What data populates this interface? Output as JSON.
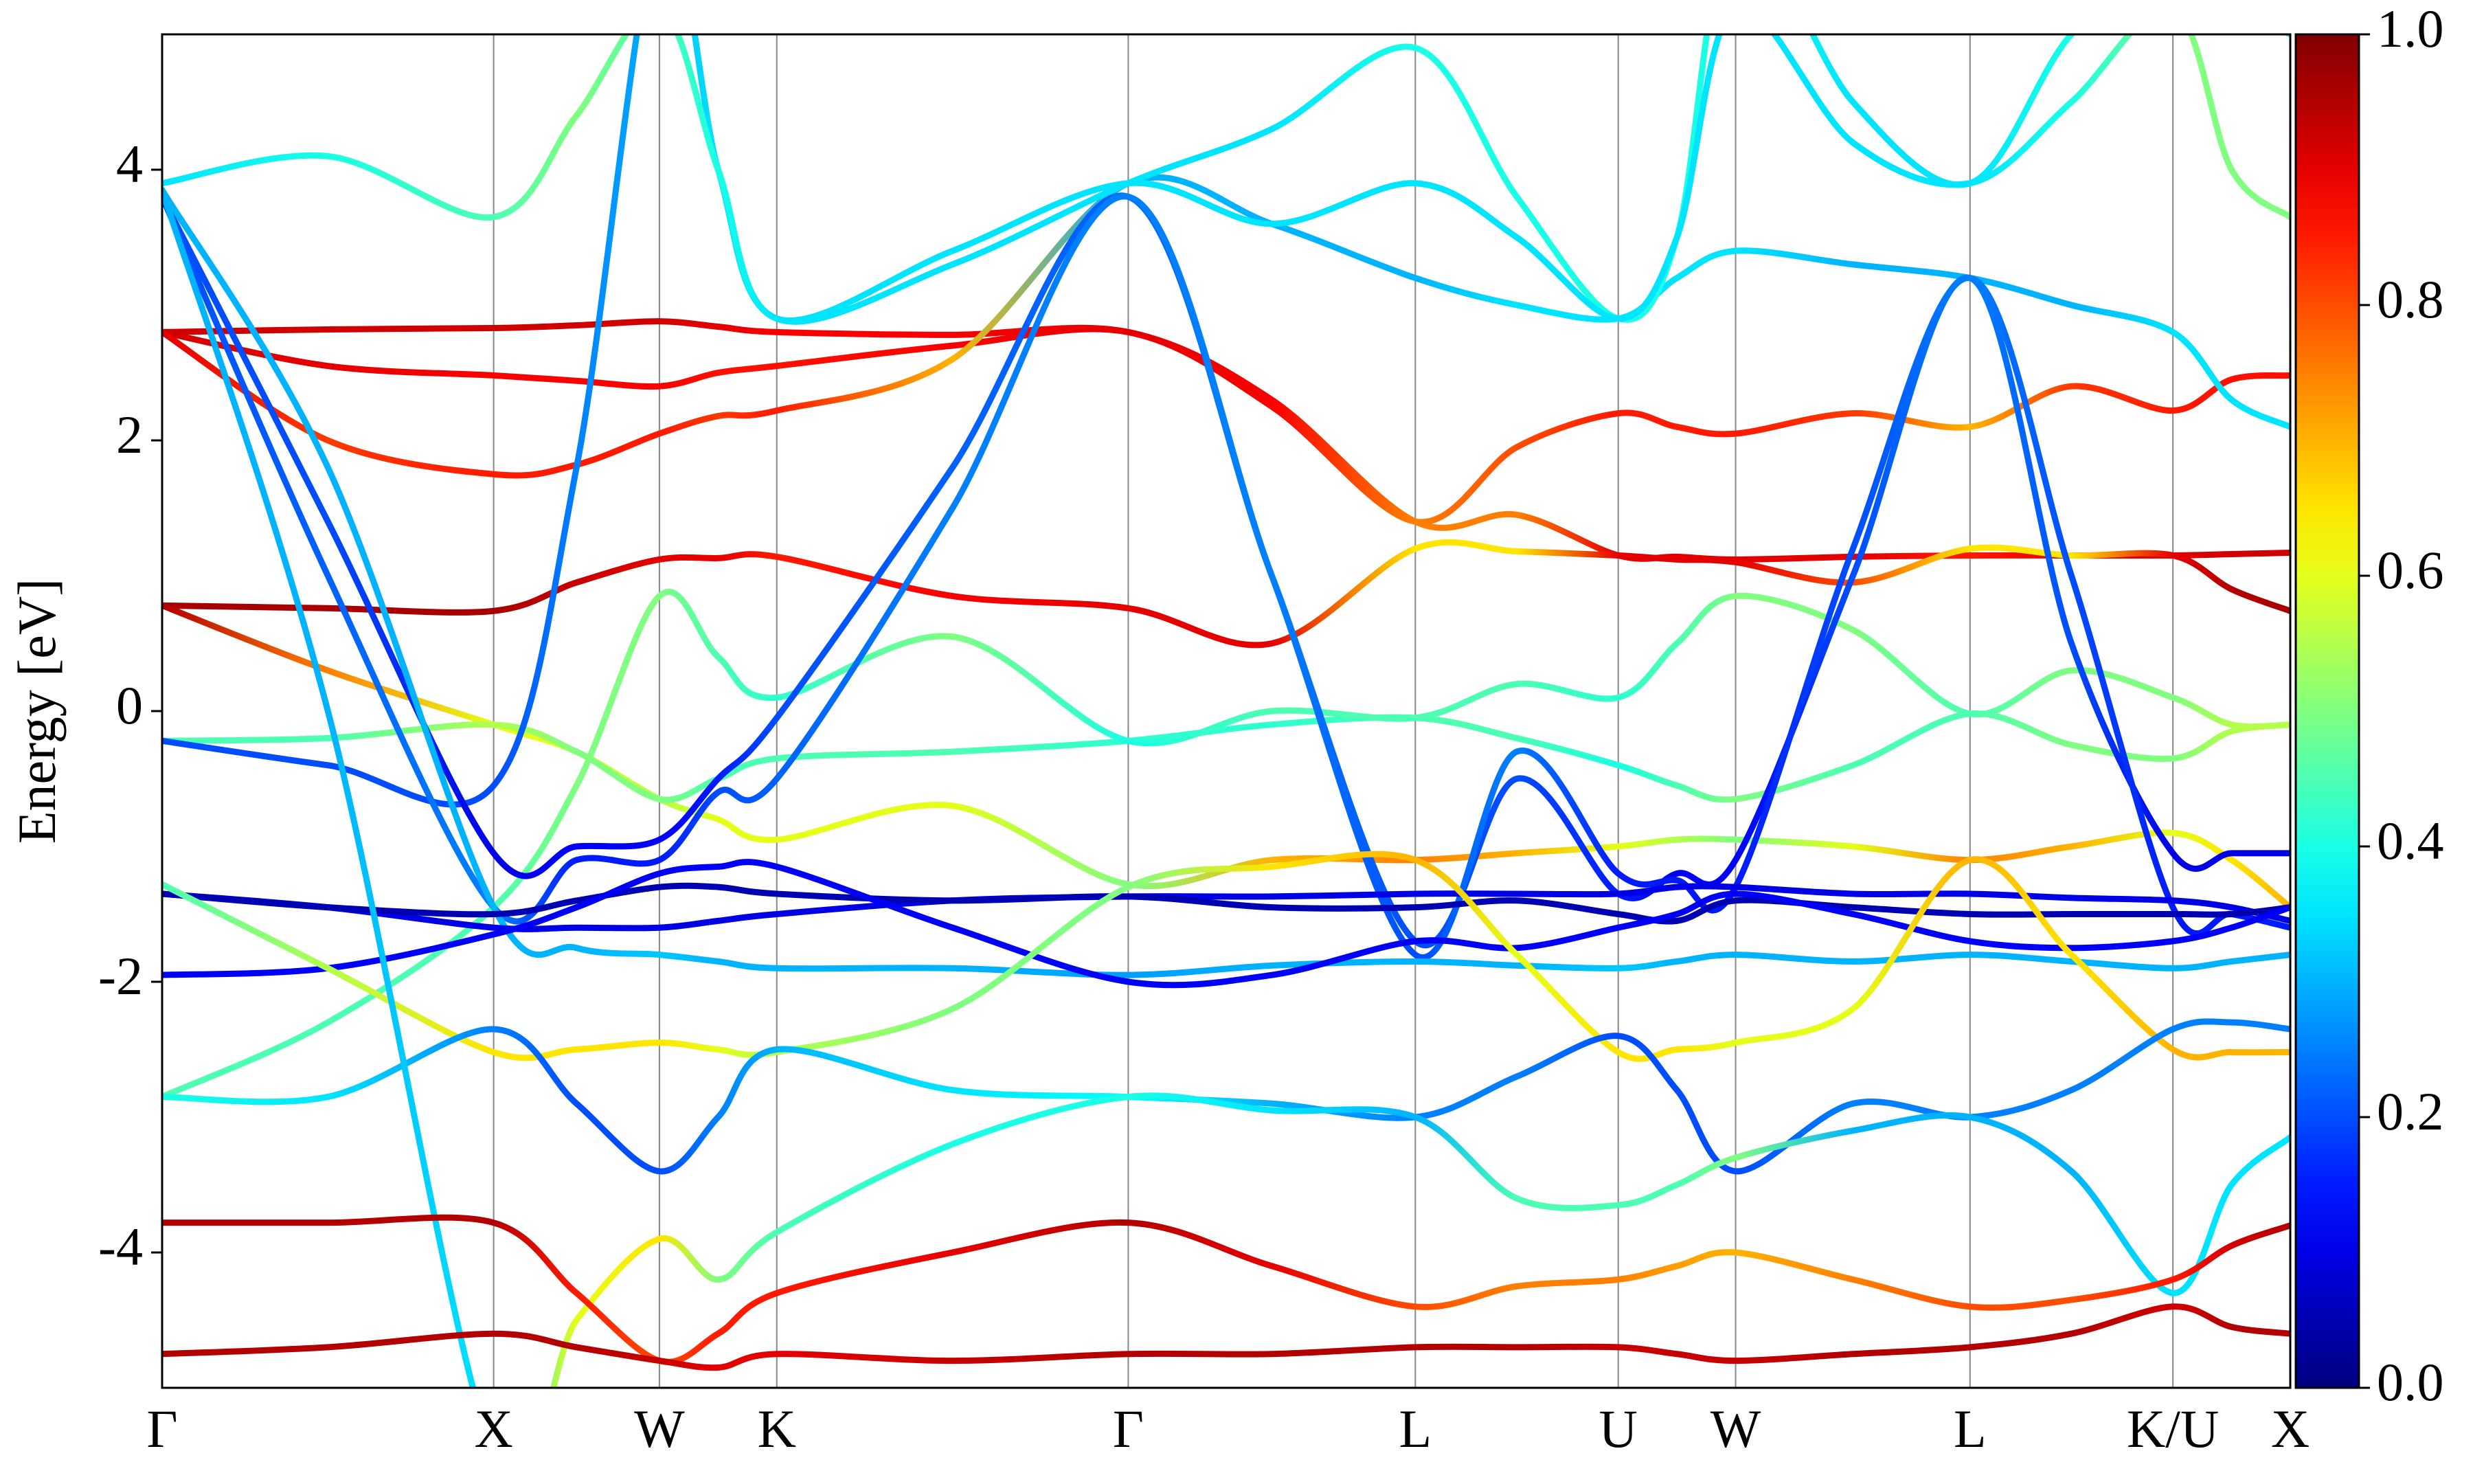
{
  "chart_data": {
    "type": "band-structure",
    "ylabel": "Energy [eV]",
    "colormap": "jet",
    "x": [
      0,
      0.5,
      1,
      1.25,
      1.5,
      1.677,
      1.854,
      2.384,
      2.914,
      3.347,
      3.78,
      4.086,
      4.392,
      4.569,
      4.746,
      5.1,
      5.453,
      5.759,
      6.065,
      6.242,
      6.419
    ],
    "xlim": [
      0,
      6.419
    ],
    "xticks": [
      {
        "value": 0,
        "label": "Γ"
      },
      {
        "value": 1,
        "label": "X"
      },
      {
        "value": 1.5,
        "label": "W"
      },
      {
        "value": 1.854,
        "label": "K"
      },
      {
        "value": 2.914,
        "label": "Γ"
      },
      {
        "value": 3.78,
        "label": "L"
      },
      {
        "value": 4.392,
        "label": "U"
      },
      {
        "value": 4.746,
        "label": "W"
      },
      {
        "value": 5.453,
        "label": "L"
      },
      {
        "value": 6.065,
        "label": "K/U"
      },
      {
        "value": 6.419,
        "label": "X"
      }
    ],
    "ylim": [
      -5,
      5
    ],
    "yticks": [
      -4,
      -2,
      0,
      2,
      4
    ],
    "colorbar_lim": [
      0,
      1
    ],
    "colorbar_ticks": [
      {
        "value": 0,
        "label": "0.0"
      },
      0.2,
      0.4,
      0.6,
      0.8,
      {
        "value": 1,
        "label": "1.0"
      }
    ],
    "series": [
      {
        "values": [
          2.8,
          2.82,
          2.83,
          2.85,
          2.88,
          2.84,
          2.8,
          2.78,
          2.8,
          2.3,
          1.4,
          1.45,
          1.15,
          1.14,
          1.12,
          1.14,
          1.15,
          1.15,
          1.15,
          1.16,
          1.17
        ],
        "weights": [
          0.92,
          0.92,
          0.92,
          0.92,
          0.92,
          0.9,
          0.88,
          0.88,
          0.9,
          0.88,
          0.75,
          0.75,
          0.9,
          0.9,
          0.9,
          0.9,
          0.85,
          0.9,
          0.9,
          0.92,
          0.92
        ]
      },
      {
        "values": [
          2.8,
          2.55,
          2.48,
          2.44,
          2.4,
          2.5,
          2.55,
          2.7,
          2.8,
          2.25,
          1.4,
          1.95,
          2.2,
          2.1,
          2.05,
          2.2,
          2.1,
          2.4,
          2.22,
          2.45,
          2.48
        ],
        "weights": [
          0.92,
          0.9,
          0.88,
          0.88,
          0.88,
          0.86,
          0.86,
          0.88,
          0.9,
          0.88,
          0.75,
          0.8,
          0.85,
          0.85,
          0.85,
          0.82,
          0.7,
          0.82,
          0.85,
          0.86,
          0.86
        ]
      },
      {
        "values": [
          2.8,
          2.0,
          1.75,
          1.82,
          2.05,
          2.18,
          2.22,
          2.6,
          3.9,
          3.6,
          3.2,
          3.0,
          2.9,
          3.2,
          3.4,
          3.3,
          3.2,
          3.0,
          2.8,
          2.3,
          2.1
        ],
        "weights": [
          0.9,
          0.82,
          0.85,
          0.85,
          0.85,
          0.82,
          0.85,
          0.7,
          0.3,
          0.3,
          0.3,
          0.35,
          0.35,
          0.35,
          0.35,
          0.3,
          0.3,
          0.3,
          0.35,
          0.35,
          0.35
        ]
      },
      {
        "values": [
          0.78,
          0.76,
          0.74,
          0.95,
          1.12,
          1.13,
          1.14,
          0.85,
          0.76,
          0.5,
          1.2,
          1.18,
          1.15,
          1.12,
          1.1,
          0.95,
          1.2,
          1.15,
          1.15,
          0.9,
          0.74
        ],
        "weights": [
          0.96,
          0.96,
          0.96,
          0.93,
          0.9,
          0.9,
          0.85,
          0.88,
          0.9,
          0.9,
          0.65,
          0.65,
          0.9,
          0.9,
          0.9,
          0.8,
          0.65,
          0.65,
          0.9,
          0.95,
          0.96
        ]
      },
      {
        "values": [
          0.78,
          0.3,
          -0.1,
          -0.3,
          -0.65,
          -0.8,
          -0.95,
          -0.7,
          -1.28,
          -1.1,
          -1.1,
          -1.05,
          -1.0,
          -0.95,
          -0.95,
          -1.0,
          -1.1,
          -1.0,
          -0.9,
          -1.1,
          -1.45
        ],
        "weights": [
          0.95,
          0.75,
          0.6,
          0.6,
          0.55,
          0.6,
          0.6,
          0.6,
          0.5,
          0.7,
          0.75,
          0.7,
          0.6,
          0.55,
          0.5,
          0.6,
          0.75,
          0.7,
          0.6,
          0.65,
          0.7
        ]
      },
      {
        "values": [
          -0.22,
          -0.2,
          -0.1,
          -0.3,
          -0.65,
          -0.5,
          -0.35,
          -0.3,
          -0.22,
          -0.1,
          -0.05,
          -0.2,
          -0.4,
          -0.55,
          -0.65,
          -0.4,
          -0.02,
          -0.25,
          -0.35,
          -0.15,
          -0.1
        ],
        "weights": [
          0.45,
          0.45,
          0.55,
          0.5,
          0.5,
          0.45,
          0.45,
          0.45,
          0.42,
          0.42,
          0.45,
          0.45,
          0.4,
          0.45,
          0.5,
          0.45,
          0.45,
          0.5,
          0.5,
          0.55,
          0.55
        ]
      },
      {
        "values": [
          -0.22,
          -0.4,
          -0.55,
          1.8,
          5.8,
          4.0,
          2.9,
          3.3,
          3.9,
          4.3,
          4.9,
          3.8,
          2.9,
          3.5,
          5.8,
          4.5,
          3.9,
          5.0,
          5.5,
          5.2,
          5.0
        ],
        "weights": [
          0.2,
          0.2,
          0.2,
          0.25,
          0.3,
          0.35,
          0.35,
          0.35,
          0.35,
          0.35,
          0.4,
          0.4,
          0.4,
          0.4,
          0.4,
          0.35,
          0.35,
          0.4,
          0.4,
          0.4,
          0.4
        ]
      },
      {
        "values": [
          -2.85,
          -2.3,
          -1.45,
          -0.55,
          0.85,
          0.4,
          0.1,
          0.55,
          -0.22,
          0.0,
          -0.05,
          0.2,
          0.1,
          0.5,
          0.85,
          0.6,
          -0.02,
          0.3,
          0.1,
          -0.1,
          -0.1
        ],
        "weights": [
          0.45,
          0.45,
          0.45,
          0.5,
          0.5,
          0.45,
          0.42,
          0.5,
          0.4,
          0.45,
          0.45,
          0.45,
          0.42,
          0.45,
          0.5,
          0.5,
          0.45,
          0.5,
          0.5,
          0.55,
          0.55
        ]
      },
      {
        "values": [
          3.8,
          1.4,
          -1.05,
          -1.0,
          -0.95,
          -0.5,
          -0.05,
          1.8,
          3.8,
          1.0,
          -1.7,
          -0.5,
          -1.35,
          -1.2,
          -1.1,
          1.0,
          3.2,
          0.5,
          -1.05,
          -1.05,
          -1.05
        ],
        "weights": [
          0.2,
          0.2,
          0.1,
          0.12,
          0.12,
          0.15,
          0.2,
          0.22,
          0.22,
          0.25,
          0.2,
          0.2,
          0.15,
          0.12,
          0.12,
          0.2,
          0.25,
          0.2,
          0.1,
          0.1,
          0.1
        ]
      },
      {
        "values": [
          3.8,
          1.0,
          -1.45,
          -1.1,
          -1.1,
          -0.6,
          -0.5,
          1.5,
          3.8,
          1.0,
          -1.8,
          -0.3,
          -1.2,
          -1.25,
          -1.3,
          1.2,
          3.2,
          1.0,
          -1.45,
          -1.5,
          -1.6
        ],
        "weights": [
          0.2,
          0.22,
          0.25,
          0.15,
          0.15,
          0.2,
          0.22,
          0.25,
          0.25,
          0.25,
          0.2,
          0.25,
          0.15,
          0.15,
          0.15,
          0.2,
          0.25,
          0.2,
          0.15,
          0.15,
          0.15
        ]
      },
      {
        "values": [
          3.85,
          1.8,
          -1.45,
          -1.75,
          -1.8,
          -1.85,
          -1.9,
          -1.9,
          -1.95,
          -1.88,
          -1.85,
          -1.88,
          -1.9,
          -1.85,
          -1.8,
          -1.85,
          -1.8,
          -1.85,
          -1.9,
          -1.85,
          -1.8
        ],
        "weights": [
          0.3,
          0.3,
          0.3,
          0.3,
          0.32,
          0.3,
          0.3,
          0.3,
          0.28,
          0.3,
          0.3,
          0.3,
          0.32,
          0.3,
          0.3,
          0.3,
          0.3,
          0.3,
          0.3,
          0.3,
          0.3
        ]
      },
      {
        "values": [
          -1.35,
          -1.45,
          -1.6,
          -1.6,
          -1.6,
          -1.55,
          -1.5,
          -1.4,
          -1.37,
          -1.37,
          -1.35,
          -1.35,
          -1.35,
          -1.3,
          -1.3,
          -1.35,
          -1.35,
          -1.38,
          -1.4,
          -1.45,
          -1.55
        ],
        "weights": [
          0.1,
          0.1,
          0.1,
          0.1,
          0.1,
          0.1,
          0.1,
          0.1,
          0.1,
          0.1,
          0.1,
          0.1,
          0.1,
          0.1,
          0.1,
          0.1,
          0.1,
          0.1,
          0.1,
          0.1,
          0.1
        ]
      },
      {
        "values": [
          -1.35,
          -1.45,
          -1.5,
          -1.4,
          -1.3,
          -1.3,
          -1.35,
          -1.4,
          -1.37,
          -1.45,
          -1.45,
          -1.4,
          -1.5,
          -1.55,
          -1.4,
          -1.45,
          -1.5,
          -1.5,
          -1.5,
          -1.5,
          -1.45
        ],
        "weights": [
          0.05,
          0.05,
          0.05,
          0.05,
          0.05,
          0.05,
          0.05,
          0.05,
          0.05,
          0.05,
          0.05,
          0.05,
          0.05,
          0.05,
          0.05,
          0.05,
          0.05,
          0.05,
          0.05,
          0.05,
          0.05
        ]
      },
      {
        "values": [
          -1.95,
          -1.9,
          -1.65,
          -1.45,
          -1.2,
          -1.15,
          -1.15,
          -1.6,
          -2.0,
          -1.95,
          -1.7,
          -1.75,
          -1.6,
          -1.5,
          -1.35,
          -1.5,
          -1.7,
          -1.75,
          -1.7,
          -1.6,
          -1.45
        ],
        "weights": [
          0.12,
          0.12,
          0.12,
          0.12,
          0.12,
          0.12,
          0.12,
          0.12,
          0.12,
          0.12,
          0.12,
          0.12,
          0.12,
          0.12,
          0.12,
          0.12,
          0.12,
          0.12,
          0.12,
          0.12,
          0.12
        ]
      },
      {
        "values": [
          -1.28,
          -1.9,
          -2.52,
          -2.5,
          -2.45,
          -2.5,
          -2.52,
          -2.2,
          -1.3,
          -1.15,
          -1.1,
          -1.8,
          -2.52,
          -2.5,
          -2.45,
          -2.2,
          -1.1,
          -1.8,
          -2.5,
          -2.52,
          -2.52
        ],
        "weights": [
          0.45,
          0.55,
          0.65,
          0.65,
          0.65,
          0.6,
          0.55,
          0.5,
          0.5,
          0.65,
          0.7,
          0.6,
          0.65,
          0.65,
          0.6,
          0.6,
          0.7,
          0.65,
          0.7,
          0.7,
          0.7
        ]
      },
      {
        "values": [
          -2.85,
          -2.85,
          -2.35,
          -2.9,
          -3.4,
          -3.0,
          -2.5,
          -2.8,
          -2.85,
          -2.9,
          -3.0,
          -2.7,
          -2.4,
          -2.8,
          -3.4,
          -2.9,
          -3.0,
          -2.8,
          -2.35,
          -2.3,
          -2.35
        ],
        "weights": [
          0.4,
          0.35,
          0.25,
          0.2,
          0.2,
          0.25,
          0.3,
          0.35,
          0.38,
          0.3,
          0.25,
          0.25,
          0.2,
          0.2,
          0.2,
          0.25,
          0.25,
          0.25,
          0.25,
          0.25,
          0.25
        ]
      },
      {
        "values": [
          3.85,
          0.0,
          -5.5,
          -4.5,
          -3.9,
          -4.2,
          -3.85,
          -3.2,
          -2.85,
          -2.95,
          -3.0,
          -3.6,
          -3.65,
          -3.5,
          -3.3,
          -3.1,
          -3.0,
          -3.4,
          -4.3,
          -3.5,
          -3.15
        ],
        "weights": [
          0.3,
          0.3,
          0.35,
          0.6,
          0.65,
          0.5,
          0.45,
          0.4,
          0.4,
          0.35,
          0.3,
          0.45,
          0.45,
          0.45,
          0.5,
          0.3,
          0.3,
          0.3,
          0.35,
          0.35,
          0.35
        ]
      },
      {
        "values": [
          -3.78,
          -3.78,
          -3.78,
          -4.3,
          -4.8,
          -4.6,
          -4.3,
          -4.0,
          -3.78,
          -4.1,
          -4.4,
          -4.25,
          -4.2,
          -4.1,
          -4.0,
          -4.2,
          -4.4,
          -4.35,
          -4.2,
          -3.95,
          -3.8
        ],
        "weights": [
          0.95,
          0.95,
          0.95,
          0.85,
          0.8,
          0.85,
          0.85,
          0.9,
          0.95,
          0.9,
          0.8,
          0.75,
          0.75,
          0.72,
          0.7,
          0.75,
          0.8,
          0.8,
          0.85,
          0.92,
          0.95
        ]
      },
      {
        "values": [
          -4.75,
          -4.7,
          -4.6,
          -4.7,
          -4.8,
          -4.85,
          -4.75,
          -4.8,
          -4.75,
          -4.75,
          -4.7,
          -4.7,
          -4.7,
          -4.75,
          -4.8,
          -4.75,
          -4.7,
          -4.6,
          -4.4,
          -4.55,
          -4.6
        ],
        "weights": [
          0.95,
          0.95,
          0.95,
          0.95,
          0.93,
          0.9,
          0.9,
          0.93,
          0.95,
          0.95,
          0.95,
          0.95,
          0.93,
          0.93,
          0.93,
          0.95,
          0.95,
          0.95,
          0.92,
          0.95,
          0.95
        ]
      },
      {
        "values": [
          3.9,
          4.1,
          3.65,
          4.4,
          5.2,
          4.0,
          2.9,
          3.4,
          3.9,
          3.6,
          3.9,
          3.5,
          2.9,
          3.5,
          5.2,
          4.2,
          3.9,
          4.5,
          5.2,
          4.0,
          3.65
        ],
        "weights": [
          0.35,
          0.4,
          0.45,
          0.5,
          0.45,
          0.4,
          0.35,
          0.35,
          0.35,
          0.35,
          0.35,
          0.35,
          0.35,
          0.35,
          0.35,
          0.35,
          0.35,
          0.4,
          0.5,
          0.5,
          0.5
        ]
      }
    ]
  }
}
